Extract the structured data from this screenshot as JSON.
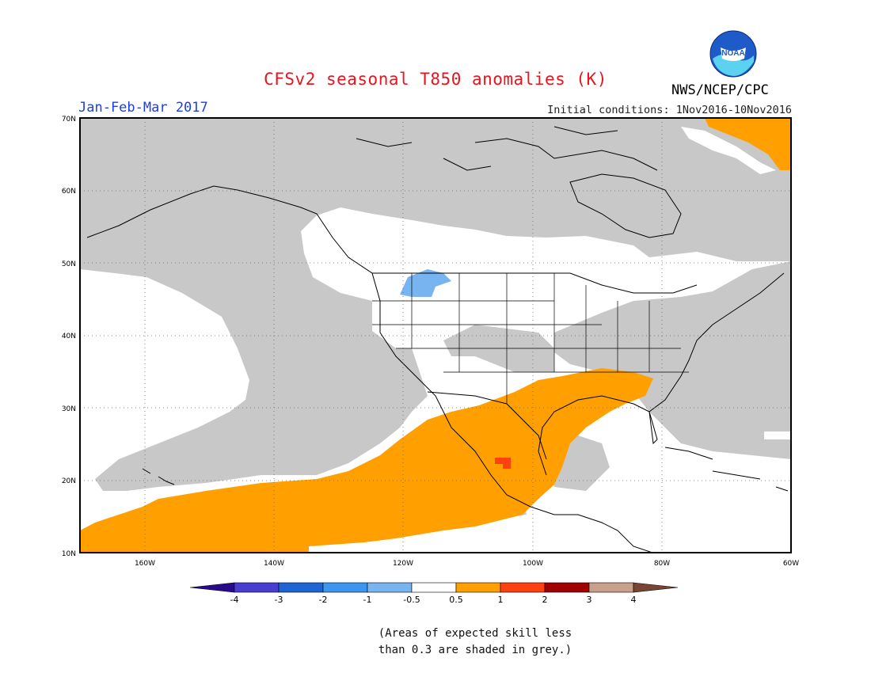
{
  "header": {
    "title": "CFSv2 seasonal T850 anomalies (K)",
    "season": "Jan-Feb-Mar 2017",
    "initial_conditions": "Initial conditions: 1Nov2016-10Nov2016",
    "agency": "NWS/NCEP/CPC",
    "logo_text": "NOAA"
  },
  "map": {
    "lat_labels": [
      "70N",
      "60N",
      "50N",
      "40N",
      "30N",
      "20N",
      "10N"
    ],
    "lon_labels": [
      "160W",
      "140W",
      "120W",
      "100W",
      "80W",
      "60W"
    ],
    "extent": {
      "lon": [
        -170,
        -60
      ],
      "lat": [
        10,
        70
      ]
    },
    "colors": {
      "grey": "#c8c8c8",
      "orange": "#ffa000",
      "red": "#ff4010",
      "lightblue": "#78b4f0",
      "ocean": "#ffffff"
    }
  },
  "colorbar": {
    "labels": [
      "-4",
      "-3",
      "-2",
      "-1",
      "-0.5",
      "0.5",
      "1",
      "2",
      "3",
      "4"
    ],
    "colors": [
      "#2a0a8c",
      "#4a3ed0",
      "#1e64d2",
      "#3c96f0",
      "#78b4f0",
      "#ffffff",
      "#ffa000",
      "#ff4010",
      "#a00000",
      "#c8a08c",
      "#784632"
    ]
  },
  "footnote": {
    "line1": "(Areas of expected skill less",
    "line2": "than 0.3 are shaded in grey.)"
  }
}
